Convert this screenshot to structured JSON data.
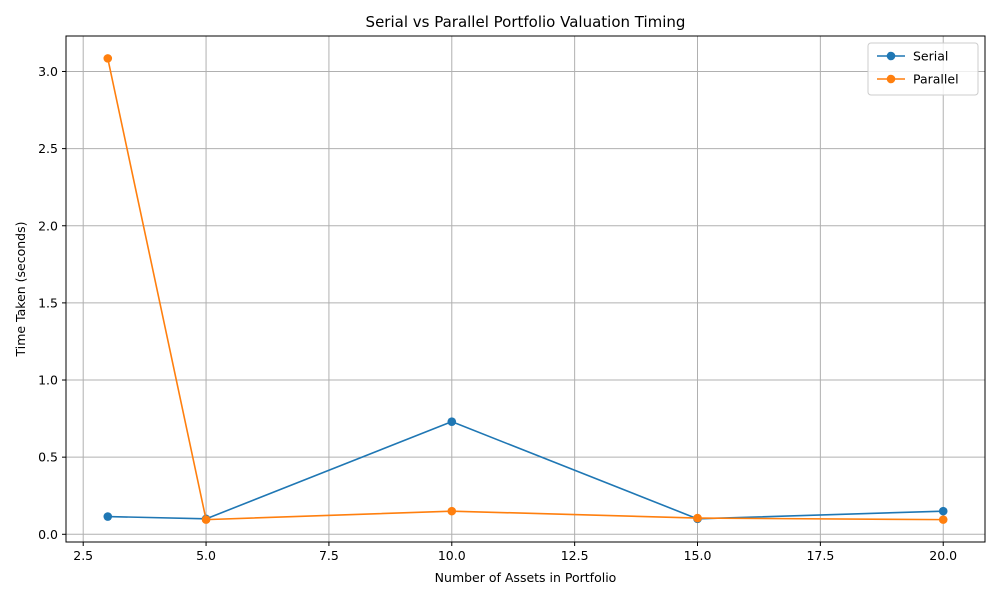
{
  "chart_data": {
    "type": "line",
    "title": "Serial vs Parallel Portfolio Valuation Timing",
    "xlabel": "Number of Assets in Portfolio",
    "ylabel": "Time Taken (seconds)",
    "x": [
      3,
      5,
      10,
      15,
      20
    ],
    "xlim": [
      2.15,
      20.85
    ],
    "ylim": [
      -0.05,
      3.23
    ],
    "xticks": [
      2.5,
      5.0,
      7.5,
      10.0,
      12.5,
      15.0,
      17.5,
      20.0
    ],
    "yticks": [
      0.0,
      0.5,
      1.0,
      1.5,
      2.0,
      2.5,
      3.0
    ],
    "xtick_labels": [
      "2.5",
      "5.0",
      "7.5",
      "10.0",
      "12.5",
      "15.0",
      "17.5",
      "20.0"
    ],
    "ytick_labels": [
      "0.0",
      "0.5",
      "1.0",
      "1.5",
      "2.0",
      "2.5",
      "3.0"
    ],
    "grid": true,
    "legend_position": "top-right",
    "series": [
      {
        "name": "Serial",
        "color": "#1f77b4",
        "values": [
          0.115,
          0.1,
          0.73,
          0.1,
          0.15
        ]
      },
      {
        "name": "Parallel",
        "color": "#ff7f0e",
        "values": [
          3.085,
          0.095,
          0.15,
          0.105,
          0.095
        ]
      }
    ]
  }
}
